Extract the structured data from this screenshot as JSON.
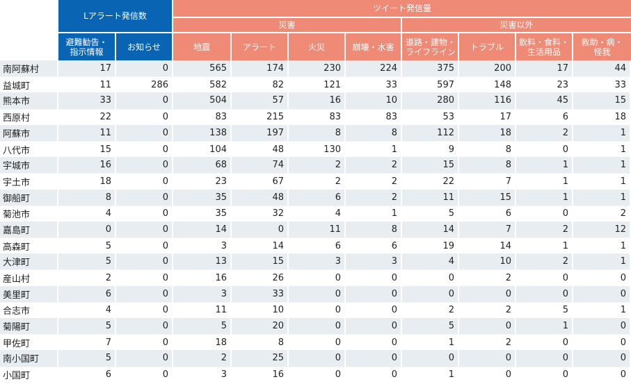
{
  "header": {
    "lalert_group": "Lアラート発信数",
    "tweet_group": "ツイート発信量",
    "disaster_group": "災害",
    "nondisaster_group": "災害以外",
    "columns": {
      "evac": "避難勧告・\n指示情報",
      "notice": "お知らせ",
      "quake": "地震",
      "alert": "アラート",
      "fire": "火災",
      "collapse": "崩壊・水害",
      "road": "道路・建物・\nライフライン",
      "trouble": "トラブル",
      "food": "飲料・食料・\n生活用品",
      "rescue": "救助・病・\n怪我"
    }
  },
  "rows": [
    {
      "name": "南阿蘇村",
      "v": [
        "17",
        "0",
        "565",
        "174",
        "230",
        "224",
        "375",
        "200",
        "17",
        "44"
      ]
    },
    {
      "name": "益城町",
      "v": [
        "11",
        "286",
        "582",
        "82",
        "121",
        "33",
        "597",
        "148",
        "23",
        "33"
      ]
    },
    {
      "name": "熊本市",
      "v": [
        "33",
        "0",
        "504",
        "57",
        "16",
        "10",
        "280",
        "116",
        "45",
        "15"
      ]
    },
    {
      "name": "西原村",
      "v": [
        "22",
        "0",
        "83",
        "215",
        "83",
        "83",
        "53",
        "17",
        "6",
        "18"
      ]
    },
    {
      "name": "阿蘇市",
      "v": [
        "11",
        "0",
        "138",
        "197",
        "8",
        "8",
        "112",
        "18",
        "2",
        "1"
      ]
    },
    {
      "name": "八代市",
      "v": [
        "15",
        "0",
        "104",
        "48",
        "130",
        "1",
        "9",
        "8",
        "0",
        "1"
      ]
    },
    {
      "name": "宇城市",
      "v": [
        "16",
        "0",
        "68",
        "74",
        "2",
        "2",
        "15",
        "8",
        "1",
        "1"
      ]
    },
    {
      "name": "宇土市",
      "v": [
        "18",
        "0",
        "23",
        "67",
        "2",
        "2",
        "22",
        "7",
        "1",
        "1"
      ]
    },
    {
      "name": "御船町",
      "v": [
        "8",
        "0",
        "35",
        "48",
        "6",
        "2",
        "11",
        "15",
        "1",
        "1"
      ]
    },
    {
      "name": "菊池市",
      "v": [
        "4",
        "0",
        "35",
        "32",
        "4",
        "1",
        "5",
        "6",
        "0",
        "2"
      ]
    },
    {
      "name": "嘉島町",
      "v": [
        "0",
        "0",
        "14",
        "0",
        "11",
        "8",
        "14",
        "7",
        "2",
        "12"
      ]
    },
    {
      "name": "高森町",
      "v": [
        "5",
        "0",
        "3",
        "14",
        "6",
        "6",
        "19",
        "14",
        "1",
        "1"
      ]
    },
    {
      "name": "大津町",
      "v": [
        "5",
        "0",
        "13",
        "15",
        "3",
        "3",
        "4",
        "10",
        "2",
        "1"
      ]
    },
    {
      "name": "産山村",
      "v": [
        "2",
        "0",
        "16",
        "26",
        "0",
        "0",
        "0",
        "2",
        "0",
        "0"
      ]
    },
    {
      "name": "美里町",
      "v": [
        "6",
        "0",
        "3",
        "33",
        "0",
        "0",
        "0",
        "0",
        "0",
        "0"
      ]
    },
    {
      "name": "合志市",
      "v": [
        "4",
        "0",
        "11",
        "10",
        "0",
        "0",
        "2",
        "2",
        "5",
        "1"
      ]
    },
    {
      "name": "菊陽町",
      "v": [
        "5",
        "0",
        "5",
        "20",
        "0",
        "0",
        "5",
        "0",
        "1",
        "0"
      ]
    },
    {
      "name": "甲佐町",
      "v": [
        "7",
        "0",
        "18",
        "8",
        "0",
        "0",
        "1",
        "2",
        "0",
        "0"
      ]
    },
    {
      "name": "南小国町",
      "v": [
        "5",
        "0",
        "2",
        "25",
        "0",
        "0",
        "0",
        "0",
        "0",
        "0"
      ]
    },
    {
      "name": "小国町",
      "v": [
        "6",
        "0",
        "3",
        "16",
        "0",
        "0",
        "1",
        "0",
        "0",
        "0"
      ]
    }
  ],
  "colors": {
    "lalert_header": "#0a64b4",
    "tweet_header": "#ee8a76",
    "stripe": "#e8edf1"
  }
}
